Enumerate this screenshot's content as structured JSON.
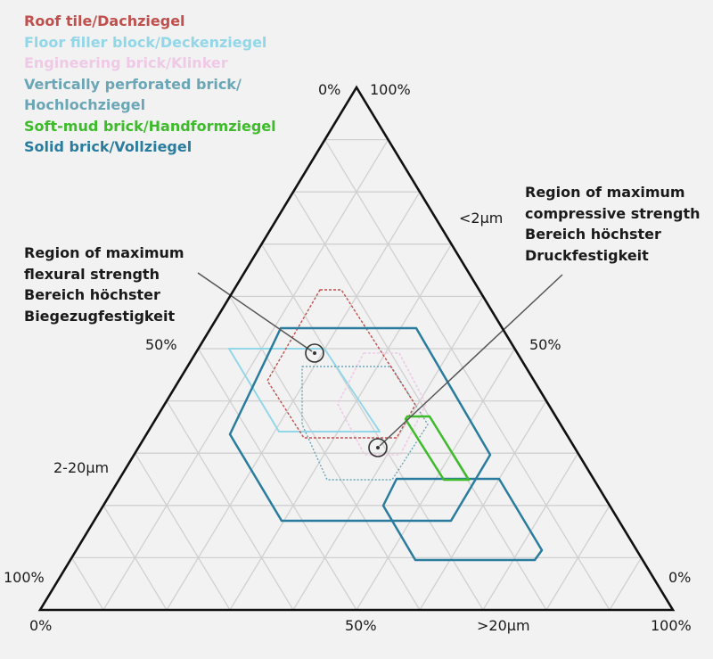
{
  "legend": [
    {
      "label": "Roof tile/Dachziegel",
      "color": "#c0504d"
    },
    {
      "label": "Floor filler block/Deckenziegel",
      "color": "#92d7e8"
    },
    {
      "label": "Engineering brick/Klinker",
      "color": "#efc9e6"
    },
    {
      "label": "Vertically perforated brick/",
      "label2": "Hochlochziegel",
      "color": "#6aa6b6"
    },
    {
      "label": "Soft-mud brick/Handformziegel",
      "color": "#3dbb2a"
    },
    {
      "label": "Solid brick/Vollziegel",
      "color": "#2a7c9e"
    }
  ],
  "annotations": {
    "compressive": [
      "Region of maximum",
      "compressive strength",
      "Bereich höchster",
      "Druckfestigkeit"
    ],
    "flexural": [
      "Region of maximum",
      "flexural strength",
      "Bereich höchster",
      "Biegezugfestigkeit"
    ]
  },
  "axis_labels": {
    "top_left": "0%",
    "top_right": "100%",
    "fine_fraction": "<2µm",
    "right_mid": "50%",
    "left_mid": "50%",
    "medium_fraction": "2-20µm",
    "left_bottom": "100%",
    "right_bottom": "0%",
    "bottom_left": "0%",
    "bottom_mid": "50%",
    "coarse_fraction": ">20µm",
    "bottom_right": "100%"
  }
}
